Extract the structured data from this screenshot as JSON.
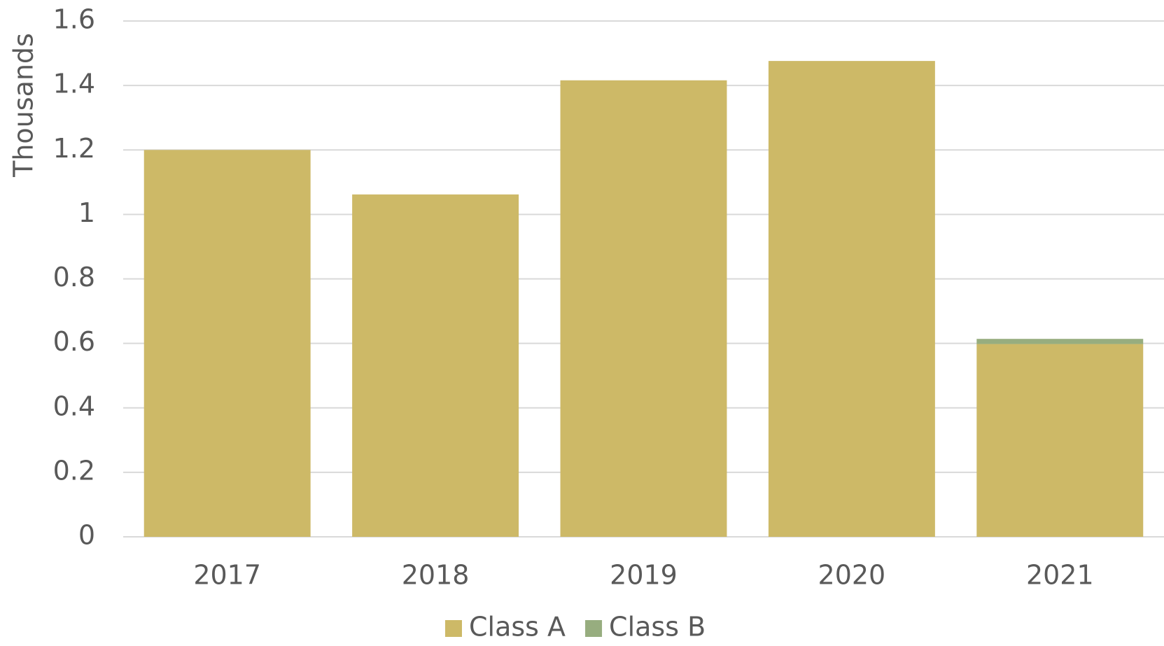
{
  "chart_data": {
    "type": "stacked_bar",
    "y_label": "Thousands",
    "categories": [
      "2017",
      "2018",
      "2019",
      "2020",
      "2021"
    ],
    "series": [
      {
        "name": "Class A",
        "color": "#cdb967",
        "values": [
          1.2,
          1.062,
          1.416,
          1.476,
          0.598
        ]
      },
      {
        "name": "Class B",
        "color": "#97ad7f",
        "values": [
          0,
          0,
          0,
          0,
          0.016
        ]
      }
    ],
    "ylim": [
      0,
      1.6
    ],
    "yticks": [
      0,
      0.2,
      0.4,
      0.6,
      0.8,
      1,
      1.2,
      1.4,
      1.6
    ],
    "grid": true,
    "legend": "bottom"
  }
}
